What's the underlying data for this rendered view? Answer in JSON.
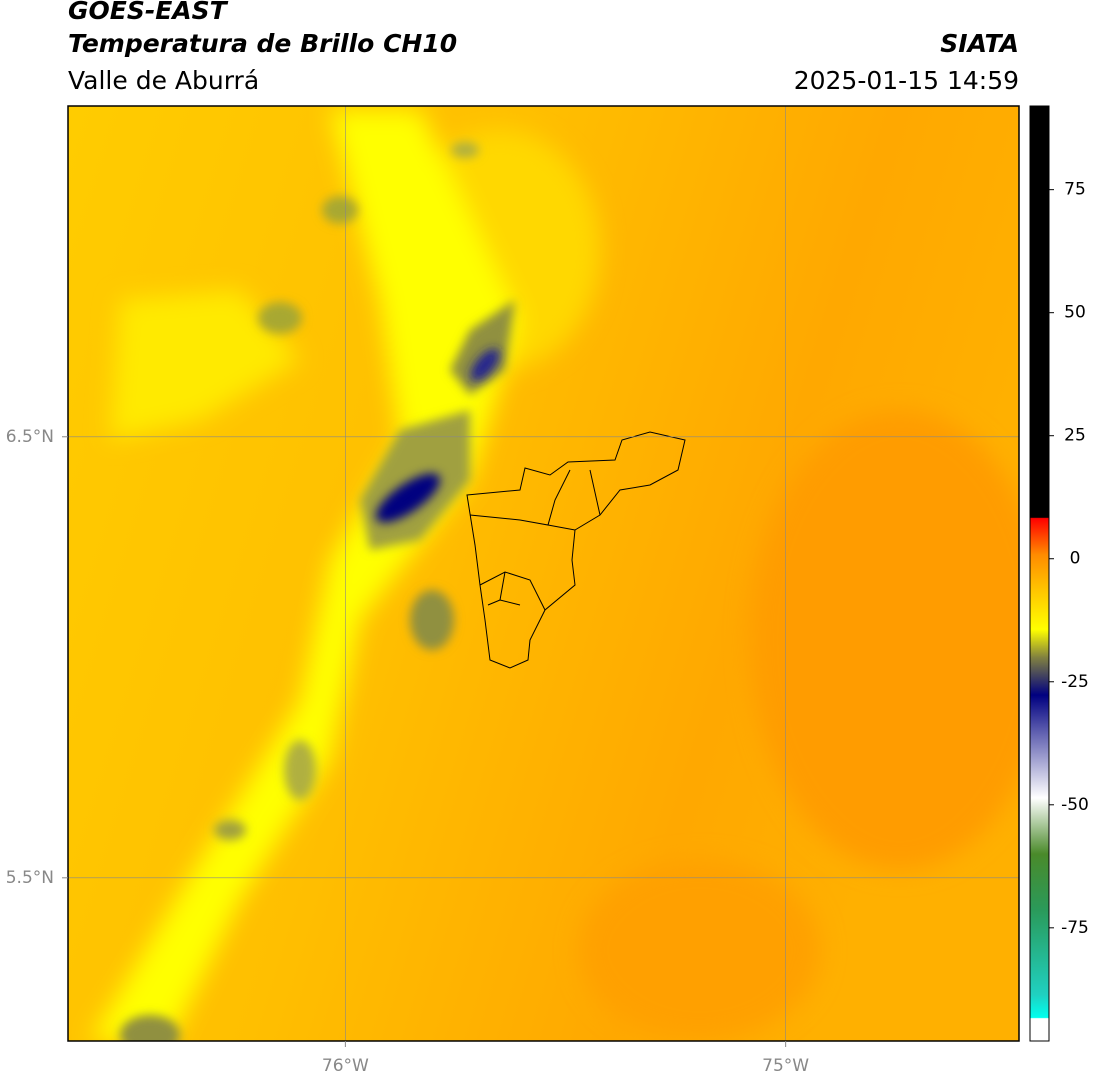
{
  "header": {
    "title": "GOES-EAST",
    "subtitle": "Temperatura de Brillo CH10",
    "region": "Valle de Aburrá",
    "agency": "SIATA",
    "timestamp": "2025-01-15 14:59"
  },
  "map": {
    "lonlim": [
      -76.63,
      -74.47
    ],
    "latlim": [
      5.13,
      7.25
    ],
    "lon_ticks": [
      {
        "value": -76,
        "label": "76°W"
      },
      {
        "value": -75,
        "label": "75°W"
      }
    ],
    "lat_ticks": [
      {
        "value": 6.5,
        "label": "6.5°N"
      },
      {
        "value": 5.5,
        "label": "5.5°N"
      }
    ]
  },
  "colorbar": {
    "lim": [
      -98,
      92
    ],
    "ticks": [
      75,
      50,
      25,
      0,
      -25,
      -50,
      -75
    ]
  }
}
